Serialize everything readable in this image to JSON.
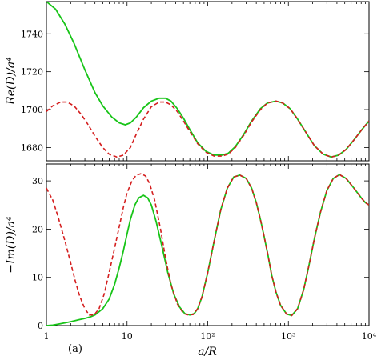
{
  "panel_label": "(a)",
  "chart_data": [
    {
      "type": "line",
      "ylabel": "Re(D)/a⁴",
      "xlabel": "",
      "xscale": "log",
      "xlim": [
        1,
        10000
      ],
      "ylim": [
        1673,
        1757
      ],
      "yticks": [
        1680,
        1700,
        1720,
        1740
      ],
      "ytick_labels": [
        "1680",
        "1700",
        "1720",
        "1740"
      ],
      "series": [
        {
          "color": "#18c418",
          "style": "solid",
          "x": [
            1,
            1.3,
            1.7,
            2.2,
            3,
            4,
            5,
            6.5,
            8,
            9.5,
            11,
            13,
            16,
            20,
            25,
            30,
            35,
            42,
            50,
            60,
            75,
            95,
            120,
            150,
            180,
            220,
            280,
            350,
            450,
            550,
            700,
            850,
            1050,
            1300,
            1650,
            2100,
            2700,
            3400,
            4200,
            5200,
            6500,
            8000,
            10000
          ],
          "y": [
            1757,
            1753,
            1745,
            1735,
            1721,
            1709,
            1702,
            1696,
            1693,
            1692,
            1693,
            1696,
            1701,
            1704.5,
            1706,
            1706,
            1704.5,
            1700.5,
            1695.5,
            1689.5,
            1682.5,
            1678,
            1676,
            1676,
            1677,
            1680.5,
            1687,
            1694,
            1700.5,
            1703.5,
            1704.5,
            1703.5,
            1700.5,
            1695,
            1688,
            1681,
            1676.5,
            1675,
            1676,
            1679,
            1684,
            1689,
            1694
          ]
        },
        {
          "color": "#d41e1e",
          "style": "dashed",
          "x": [
            1,
            1.2,
            1.5,
            1.8,
            2.2,
            2.7,
            3.3,
            4,
            5,
            6,
            7.5,
            9,
            11,
            13,
            16,
            20,
            25,
            30,
            35,
            42,
            50,
            60,
            75,
            95,
            120,
            150,
            180,
            220,
            280,
            350,
            450,
            550,
            700,
            850,
            1050,
            1300,
            1650,
            2100,
            2700,
            3400,
            4200,
            5200,
            6500,
            8000,
            10000
          ],
          "y": [
            1699,
            1702,
            1704,
            1704,
            1702,
            1697.5,
            1692,
            1686,
            1680,
            1676.5,
            1675,
            1676,
            1680,
            1687,
            1695,
            1701.5,
            1704,
            1704,
            1702.5,
            1699,
            1694,
            1688.5,
            1682,
            1677.5,
            1675.5,
            1675.5,
            1676.5,
            1680,
            1686.5,
            1693.5,
            1700,
            1703.5,
            1704.5,
            1703.5,
            1700.5,
            1695,
            1688,
            1681,
            1676.5,
            1675,
            1676,
            1679,
            1684,
            1689,
            1694
          ]
        }
      ]
    },
    {
      "type": "line",
      "ylabel": "−Im(D)/a⁴",
      "xlabel": "a/R",
      "xscale": "log",
      "xlim": [
        1,
        10000
      ],
      "ylim": [
        0,
        33.5
      ],
      "yticks": [
        0,
        10,
        20,
        30
      ],
      "ytick_labels": [
        "0",
        "10",
        "20",
        "30"
      ],
      "xticks": [
        1,
        10,
        100,
        1000,
        10000
      ],
      "xtick_labels": [
        "1",
        "10",
        "10²",
        "10³",
        "10⁴"
      ],
      "series": [
        {
          "color": "#18c418",
          "style": "solid",
          "x": [
            1,
            1.2,
            1.5,
            2,
            2.5,
            3,
            3.5,
            4,
            5,
            6,
            7,
            8,
            9,
            10,
            11,
            12.5,
            14,
            16,
            18,
            20,
            23,
            27,
            32,
            38,
            45,
            52,
            60,
            68,
            75,
            85,
            100,
            120,
            145,
            175,
            210,
            250,
            300,
            350,
            400,
            450,
            500,
            560,
            620,
            700,
            800,
            950,
            1100,
            1300,
            1550,
            1800,
            2100,
            2500,
            3000,
            3600,
            4300,
            5200,
            6500,
            8000,
            9000,
            10000
          ],
          "y": [
            0,
            0.1,
            0.4,
            0.8,
            1.2,
            1.5,
            1.8,
            2.2,
            3.5,
            5.5,
            8.5,
            12,
            15.5,
            19,
            22,
            25,
            26.5,
            27,
            26.5,
            25,
            21.5,
            16.5,
            11,
            6.5,
            3.8,
            2.5,
            2.2,
            2.5,
            3.5,
            6,
            11,
            17.5,
            24,
            28.5,
            30.8,
            31.2,
            30.5,
            28.5,
            25.5,
            22,
            18.5,
            14.5,
            10.5,
            7,
            4.2,
            2.4,
            2.1,
            3.5,
            7.5,
            12.5,
            18,
            23.5,
            28,
            30.5,
            31.3,
            30.5,
            28.5,
            26.5,
            25.5,
            25
          ]
        },
        {
          "color": "#d41e1e",
          "style": "dashed",
          "x": [
            1,
            1.2,
            1.4,
            1.7,
            2,
            2.3,
            2.6,
            3,
            3.4,
            3.9,
            4.5,
            5.2,
            6,
            7,
            8,
            9,
            10,
            11.5,
            13,
            15,
            17,
            19,
            22,
            26,
            30,
            35,
            42,
            50,
            58,
            66,
            75,
            85,
            100,
            120,
            145,
            175,
            210,
            250,
            300,
            350,
            400,
            450,
            500,
            560,
            620,
            700,
            800,
            950,
            1100,
            1300,
            1550,
            1800,
            2100,
            2500,
            3000,
            3600,
            4300,
            5200,
            6500,
            8000,
            9000,
            10000
          ],
          "y": [
            28.5,
            26,
            22.5,
            17.5,
            13,
            9,
            6,
            3.5,
            2.2,
            2.2,
            3.5,
            6.5,
            11,
            16,
            20.5,
            24.5,
            27.5,
            30,
            31.2,
            31.5,
            31,
            29.5,
            26,
            20,
            14,
            8.5,
            4.5,
            2.5,
            2.2,
            2.3,
            3.5,
            6,
            11,
            17.5,
            24,
            28.5,
            30.8,
            31.2,
            30.5,
            28.5,
            25.5,
            22,
            18.5,
            14.5,
            10.5,
            7,
            4.2,
            2.4,
            2.1,
            3.5,
            7.5,
            12.5,
            18,
            23.5,
            28,
            30.5,
            31.3,
            30.5,
            28.5,
            26.5,
            25.5,
            25
          ]
        }
      ]
    }
  ]
}
